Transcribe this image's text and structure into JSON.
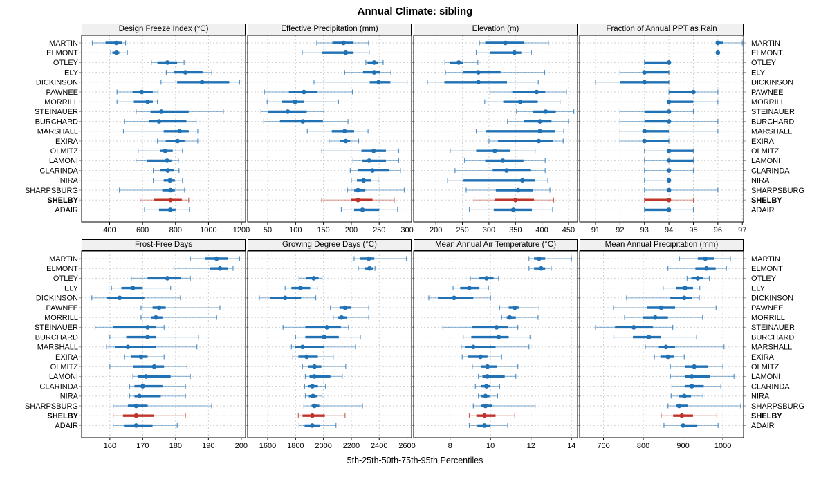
{
  "title": "Annual Climate: sibling",
  "caption": "5th-25th-50th-75th-95th Percentiles",
  "percentiles": [
    5,
    25,
    50,
    75,
    95
  ],
  "stations": [
    "MARTIN",
    "ELMONT",
    "OTLEY",
    "ELY",
    "DICKINSON",
    "PAWNEE",
    "MORRILL",
    "STEINAUER",
    "BURCHARD",
    "MARSHALL",
    "EXIRA",
    "OLMITZ",
    "LAMONI",
    "CLARINDA",
    "NIRA",
    "SHARPSBURG",
    "SHELBY",
    "ADAIR"
  ],
  "highlight_station": "SHELBY",
  "colors": {
    "series": "#2171B5",
    "highlight": "#C0342B",
    "grid": "#CFCFCF",
    "strip_bg": "#F0F0F0",
    "panel_border": "#000000"
  },
  "chart_data": [
    {
      "type": "dot-interval",
      "title": "Design Freeze Index (°C)",
      "row": 0,
      "col": 0,
      "xlim": [
        230,
        1225
      ],
      "ticks": [
        400,
        600,
        800,
        1000,
        1200
      ],
      "values": {
        "MARTIN": [
          295,
          375,
          440,
          477,
          497
        ],
        "ELMONT": [
          407,
          417,
          441,
          459,
          508
        ],
        "OTLEY": [
          653,
          690,
          751,
          810,
          852
        ],
        "ELY": [
          744,
          789,
          860,
          964,
          1020
        ],
        "DICKINSON": [
          712,
          810,
          961,
          1126,
          1189
        ],
        "PAWNEE": [
          445,
          539,
          595,
          662,
          694
        ],
        "MORRILL": [
          445,
          547,
          631,
          662,
          690
        ],
        "STEINAUER": [
          561,
          648,
          714,
          880,
          1090
        ],
        "BURCHARD": [
          491,
          641,
          700,
          866,
          925
        ],
        "MARSHALL": [
          484,
          728,
          825,
          880,
          935
        ],
        "EXIRA": [
          690,
          741,
          813,
          855,
          935
        ],
        "OLMITZ": [
          573,
          707,
          737,
          783,
          842
        ],
        "LAMONI": [
          560,
          627,
          749,
          775,
          817
        ],
        "CLARINDA": [
          665,
          707,
          753,
          791,
          821
        ],
        "NIRA": [
          665,
          728,
          766,
          796,
          842
        ],
        "SHARPSBURG": [
          459,
          720,
          770,
          796,
          855
        ],
        "SHELBY": [
          585,
          670,
          770,
          838,
          880
        ],
        "ADAIR": [
          612,
          700,
          768,
          800,
          884
        ]
      }
    },
    {
      "type": "dot-interval",
      "title": "Effective Precipitation (mm)",
      "row": 0,
      "col": 1,
      "xlim": [
        14,
        308
      ],
      "ticks": [
        50,
        100,
        150,
        200,
        250,
        300
      ],
      "values": {
        "MARTIN": [
          138,
          166,
          186,
          204,
          231
        ],
        "ELMONT": [
          112,
          148,
          190,
          204,
          232
        ],
        "OTLEY": [
          226,
          229,
          241,
          248,
          257
        ],
        "ELY": [
          188,
          221,
          241,
          252,
          271
        ],
        "DICKINSON": [
          133,
          233,
          249,
          270,
          300
        ],
        "PAWNEE": [
          44,
          88,
          115,
          139,
          202
        ],
        "MORRILL": [
          49,
          75,
          99,
          115,
          177
        ],
        "STEINAUER": [
          38,
          50,
          86,
          120,
          151
        ],
        "BURCHARD": [
          43,
          72,
          113,
          149,
          194
        ],
        "MARSHALL": [
          121,
          165,
          188,
          205,
          230
        ],
        "EXIRA": [
          160,
          180,
          190,
          198,
          213
        ],
        "OLMITZ": [
          147,
          218,
          240,
          262,
          285
        ],
        "LAMONI": [
          203,
          220,
          232,
          262,
          285
        ],
        "CLARINDA": [
          198,
          212,
          238,
          268,
          288
        ],
        "NIRA": [
          200,
          210,
          222,
          235,
          248
        ],
        "SHARPSBURG": [
          193,
          205,
          212,
          225,
          295
        ],
        "SHELBY": [
          147,
          200,
          212,
          238,
          277
        ],
        "ADAIR": [
          182,
          205,
          220,
          250,
          283
        ]
      }
    },
    {
      "type": "dot-interval",
      "title": "Elevation (m)",
      "row": 0,
      "col": 2,
      "xlim": [
        158,
        467
      ],
      "ticks": [
        200,
        250,
        300,
        350,
        400,
        450
      ],
      "values": {
        "MARTIN": [
          282,
          293,
          331,
          366,
          412
        ],
        "ELMONT": [
          276,
          302,
          348,
          361,
          380
        ],
        "OTLEY": [
          217,
          227,
          243,
          251,
          279
        ],
        "ELY": [
          218,
          251,
          280,
          322,
          405
        ],
        "DICKINSON": [
          184,
          216,
          280,
          334,
          393
        ],
        "PAWNEE": [
          302,
          344,
          390,
          406,
          446
        ],
        "MORRILL": [
          292,
          327,
          359,
          392,
          434
        ],
        "STEINAUER": [
          352,
          383,
          407,
          426,
          460
        ],
        "BURCHARD": [
          335,
          366,
          396,
          418,
          450
        ],
        "MARSHALL": [
          276,
          295,
          396,
          425,
          441
        ],
        "EXIRA": [
          300,
          317,
          394,
          421,
          440
        ],
        "OLMITZ": [
          227,
          276,
          311,
          340,
          387
        ],
        "LAMONI": [
          254,
          293,
          326,
          365,
          406
        ],
        "CLARINDA": [
          236,
          307,
          333,
          378,
          406
        ],
        "NIRA": [
          222,
          252,
          363,
          387,
          411
        ],
        "SHARPSBURG": [
          257,
          313,
          355,
          383,
          415
        ],
        "SHELBY": [
          272,
          311,
          350,
          385,
          422
        ],
        "ADAIR": [
          263,
          309,
          346,
          381,
          420
        ]
      }
    },
    {
      "type": "dot-interval",
      "title": "Fraction of Annual PPT as Rain",
      "row": 0,
      "col": 3,
      "xlim": [
        90.35,
        97.05
      ],
      "ticks": [
        91,
        92,
        93,
        94,
        95,
        96,
        97
      ],
      "values": {
        "MARTIN": [
          96,
          96,
          96,
          96.2,
          97
        ],
        "ELMONT": [
          96,
          96,
          96,
          96,
          96
        ],
        "OTLEY": [
          93,
          93,
          94,
          94,
          94
        ],
        "ELY": [
          92,
          93,
          93,
          94,
          94
        ],
        "DICKINSON": [
          91,
          92,
          93,
          94,
          94
        ],
        "PAWNEE": [
          94,
          94,
          95,
          95,
          96
        ],
        "MORRILL": [
          94,
          94,
          94,
          95,
          96
        ],
        "STEINAUER": [
          92,
          93,
          94,
          94,
          95
        ],
        "BURCHARD": [
          92,
          93,
          94,
          94,
          96
        ],
        "MARSHALL": [
          92,
          93,
          93,
          94,
          96
        ],
        "EXIRA": [
          92,
          93,
          93,
          94,
          94
        ],
        "OLMITZ": [
          93,
          94,
          94,
          95,
          95
        ],
        "LAMONI": [
          93,
          94,
          94,
          95,
          95
        ],
        "CLARINDA": [
          93,
          94,
          94,
          94,
          95
        ],
        "NIRA": [
          93,
          94,
          94,
          94,
          94
        ],
        "SHARPSBURG": [
          93,
          94,
          94,
          94,
          96
        ],
        "SHELBY": [
          93,
          93,
          94,
          94,
          95
        ],
        "ADAIR": [
          93,
          93,
          94,
          94,
          95
        ]
      }
    },
    {
      "type": "dot-interval",
      "title": "Frost-Free Days",
      "row": 1,
      "col": 0,
      "xlim": [
        151.4,
        201.3
      ],
      "ticks": [
        160,
        170,
        180,
        190,
        200
      ],
      "values": {
        "MARTIN": [
          184.5,
          189,
          192.5,
          196,
          199.5
        ],
        "ELMONT": [
          179.5,
          190.5,
          193.5,
          196,
          197.5
        ],
        "OTLEY": [
          166.5,
          171.5,
          177.5,
          181.5,
          184.5
        ],
        "ELY": [
          160.5,
          163.5,
          167,
          170,
          178.5
        ],
        "DICKINSON": [
          154.5,
          159,
          163,
          170.5,
          181.5
        ],
        "PAWNEE": [
          169.5,
          173,
          175,
          177,
          193.5
        ],
        "MORRILL": [
          169.5,
          172.5,
          174,
          176,
          192.5
        ],
        "STEINAUER": [
          155.5,
          161,
          171.5,
          174,
          176.5
        ],
        "BURCHARD": [
          160,
          165,
          171.5,
          174,
          187
        ],
        "MARSHALL": [
          159,
          161.5,
          165.5,
          174,
          186.5
        ],
        "EXIRA": [
          164.5,
          166.5,
          169.5,
          171.5,
          176.5
        ],
        "OLMITZ": [
          160,
          167,
          173.5,
          176.5,
          183.5
        ],
        "LAMONI": [
          167,
          168.5,
          171,
          178.5,
          184.5
        ],
        "CLARINDA": [
          166,
          167.5,
          170,
          176,
          183
        ],
        "NIRA": [
          166,
          167.5,
          169,
          175.5,
          183
        ],
        "SHARPSBURG": [
          161,
          165.5,
          168,
          171.5,
          191
        ],
        "SHELBY": [
          161,
          164,
          168,
          173.5,
          183
        ],
        "ADAIR": [
          161,
          164.5,
          168,
          173,
          180.5
        ]
      }
    },
    {
      "type": "dot-interval",
      "title": "Growing Degree Days (°C)",
      "row": 1,
      "col": 1,
      "xlim": [
        1456,
        2632
      ],
      "ticks": [
        1600,
        1800,
        2000,
        2200,
        2400,
        2600
      ],
      "values": {
        "MARTIN": [
          2220,
          2265,
          2325,
          2365,
          2595
        ],
        "ELMONT": [
          2250,
          2295,
          2330,
          2355,
          2370
        ],
        "OTLEY": [
          1825,
          1875,
          1930,
          1965,
          1990
        ],
        "ELY": [
          1725,
          1770,
          1835,
          1905,
          1955
        ],
        "DICKINSON": [
          1540,
          1615,
          1725,
          1840,
          1945
        ],
        "PAWNEE": [
          2050,
          2115,
          2155,
          2200,
          2325
        ],
        "MORRILL": [
          2070,
          2105,
          2130,
          2170,
          2325
        ],
        "STEINAUER": [
          1710,
          1870,
          2025,
          2125,
          2180
        ],
        "BURCHARD": [
          1800,
          1870,
          2005,
          2110,
          2265
        ],
        "MARSHALL": [
          1770,
          1795,
          1850,
          2005,
          2230
        ],
        "EXIRA": [
          1780,
          1820,
          1880,
          1960,
          2070
        ],
        "OLMITZ": [
          1850,
          1890,
          1935,
          1985,
          2160
        ],
        "LAMONI": [
          1870,
          1900,
          1935,
          2050,
          2135
        ],
        "CLARINDA": [
          1865,
          1890,
          1920,
          1960,
          2015
        ],
        "NIRA": [
          1870,
          1895,
          1925,
          1955,
          1990
        ],
        "SHARPSBURG": [
          1860,
          1915,
          1935,
          1970,
          2280
        ],
        "SHELBY": [
          1820,
          1850,
          1920,
          2010,
          2155
        ],
        "ADAIR": [
          1825,
          1865,
          1920,
          1975,
          2090
        ]
      }
    },
    {
      "type": "dot-interval",
      "title": "Mean Annual Air Temperature (°C)",
      "row": 1,
      "col": 2,
      "xlim": [
        6.2,
        14.3
      ],
      "ticks": [
        8,
        10,
        12,
        14
      ],
      "values": {
        "MARTIN": [
          11.9,
          12.15,
          12.4,
          12.7,
          14.0
        ],
        "ELMONT": [
          11.9,
          12.15,
          12.5,
          12.7,
          13.0
        ],
        "OTLEY": [
          9.0,
          9.45,
          9.8,
          10.15,
          10.4
        ],
        "ELY": [
          8.15,
          8.5,
          8.95,
          9.45,
          9.9
        ],
        "DICKINSON": [
          6.95,
          7.4,
          8.2,
          9.15,
          10.0
        ],
        "PAWNEE": [
          10.45,
          10.9,
          11.2,
          11.4,
          12.4
        ],
        "MORRILL": [
          10.55,
          10.8,
          10.95,
          11.25,
          12.35
        ],
        "STEINAUER": [
          7.65,
          9.1,
          10.3,
          10.85,
          11.35
        ],
        "BURCHARD": [
          8.65,
          9.05,
          10.4,
          10.9,
          11.95
        ],
        "MARSHALL": [
          8.55,
          8.75,
          9.15,
          10.25,
          11.9
        ],
        "EXIRA": [
          8.6,
          8.9,
          9.5,
          9.85,
          10.55
        ],
        "OLMITZ": [
          9.1,
          9.55,
          9.85,
          10.3,
          11.35
        ],
        "LAMONI": [
          9.4,
          9.6,
          9.85,
          10.7,
          11.25
        ],
        "CLARINDA": [
          9.25,
          9.55,
          9.8,
          10.0,
          10.45
        ],
        "NIRA": [
          9.4,
          9.55,
          9.75,
          9.95,
          10.35
        ],
        "SHARPSBURG": [
          9.15,
          9.55,
          9.75,
          10.1,
          12.2
        ],
        "SHELBY": [
          8.95,
          9.3,
          9.7,
          10.25,
          11.2
        ],
        "ADAIR": [
          8.95,
          9.35,
          9.7,
          10.0,
          10.85
        ]
      }
    },
    {
      "type": "dot-interval",
      "title": "Mean Annual Precipitation (mm)",
      "row": 1,
      "col": 3,
      "xlim": [
        640,
        1052
      ],
      "ticks": [
        700,
        800,
        900,
        1000
      ],
      "values": {
        "MARTIN": [
          891,
          937,
          956,
          978,
          1019
        ],
        "ELMONT": [
          862,
          931,
          959,
          982,
          1009
        ],
        "OTLEY": [
          910,
          921,
          937,
          950,
          966
        ],
        "ELY": [
          850,
          882,
          905,
          925,
          942
        ],
        "DICKINSON": [
          758,
          868,
          903,
          922,
          941
        ],
        "PAWNEE": [
          725,
          810,
          845,
          880,
          983
        ],
        "MORRILL": [
          753,
          800,
          830,
          862,
          949
        ],
        "STEINAUER": [
          680,
          729,
          776,
          824,
          874
        ],
        "BURCHARD": [
          726,
          774,
          814,
          845,
          934
        ],
        "MARSHALL": [
          805,
          839,
          857,
          880,
          1003
        ],
        "EXIRA": [
          828,
          843,
          862,
          878,
          903
        ],
        "OLMITZ": [
          868,
          905,
          928,
          962,
          1000
        ],
        "LAMONI": [
          868,
          905,
          922,
          968,
          1028
        ],
        "CLARINDA": [
          872,
          905,
          922,
          952,
          995
        ],
        "NIRA": [
          870,
          890,
          903,
          920,
          950
        ],
        "SHARPSBURG": [
          862,
          882,
          890,
          912,
          1045
        ],
        "SHELBY": [
          845,
          875,
          897,
          925,
          985
        ],
        "ADAIR": [
          852,
          895,
          900,
          935,
          988
        ]
      }
    }
  ]
}
